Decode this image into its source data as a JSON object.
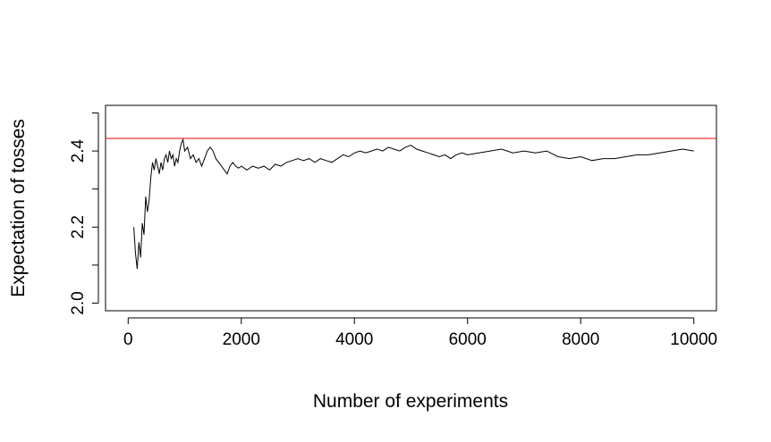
{
  "chart_data": {
    "type": "line",
    "title": "",
    "xlabel": "Number of experiments",
    "ylabel": "Expectation of tosses",
    "xlim": [
      -400,
      10400
    ],
    "ylim": [
      1.98,
      2.52
    ],
    "x_ticks": [
      0,
      2000,
      4000,
      6000,
      8000,
      10000
    ],
    "x_tick_labels": [
      "0",
      "2000",
      "4000",
      "6000",
      "8000",
      "10000"
    ],
    "y_ticks": [
      2.0,
      2.1,
      2.2,
      2.3,
      2.4,
      2.5
    ],
    "y_tick_labels": [
      "2.0",
      "",
      "2.2",
      "",
      "2.4",
      ""
    ],
    "grid": false,
    "reference_line": {
      "y": 2.433,
      "color": "#ff0000"
    },
    "series": [
      {
        "color": "#000000",
        "x": [
          100,
          130,
          160,
          190,
          220,
          250,
          280,
          310,
          340,
          370,
          400,
          430,
          460,
          490,
          520,
          550,
          580,
          610,
          640,
          670,
          700,
          730,
          760,
          790,
          820,
          850,
          880,
          910,
          940,
          970,
          1000,
          1050,
          1100,
          1150,
          1200,
          1250,
          1300,
          1350,
          1400,
          1450,
          1500,
          1550,
          1600,
          1650,
          1700,
          1750,
          1800,
          1850,
          1900,
          1950,
          2000,
          2100,
          2200,
          2300,
          2400,
          2500,
          2600,
          2700,
          2800,
          2900,
          3000,
          3100,
          3200,
          3300,
          3400,
          3500,
          3600,
          3700,
          3800,
          3900,
          4000,
          4100,
          4200,
          4300,
          4400,
          4500,
          4600,
          4700,
          4800,
          4900,
          5000,
          5100,
          5200,
          5300,
          5400,
          5500,
          5600,
          5700,
          5800,
          5900,
          6000,
          6200,
          6400,
          6600,
          6800,
          7000,
          7200,
          7400,
          7600,
          7800,
          8000,
          8200,
          8400,
          8600,
          8800,
          9000,
          9200,
          9400,
          9600,
          9800,
          10000
        ],
        "y": [
          2.2,
          2.13,
          2.09,
          2.16,
          2.12,
          2.21,
          2.18,
          2.28,
          2.24,
          2.27,
          2.33,
          2.37,
          2.35,
          2.38,
          2.36,
          2.34,
          2.37,
          2.35,
          2.38,
          2.39,
          2.37,
          2.4,
          2.38,
          2.39,
          2.36,
          2.38,
          2.37,
          2.4,
          2.42,
          2.43,
          2.4,
          2.41,
          2.38,
          2.39,
          2.37,
          2.38,
          2.36,
          2.38,
          2.4,
          2.41,
          2.4,
          2.38,
          2.37,
          2.36,
          2.35,
          2.34,
          2.36,
          2.37,
          2.36,
          2.355,
          2.36,
          2.35,
          2.36,
          2.355,
          2.36,
          2.35,
          2.365,
          2.36,
          2.37,
          2.375,
          2.38,
          2.375,
          2.38,
          2.37,
          2.38,
          2.375,
          2.37,
          2.38,
          2.39,
          2.385,
          2.395,
          2.4,
          2.395,
          2.4,
          2.405,
          2.4,
          2.41,
          2.405,
          2.4,
          2.41,
          2.415,
          2.405,
          2.4,
          2.395,
          2.39,
          2.385,
          2.39,
          2.38,
          2.39,
          2.395,
          2.39,
          2.395,
          2.4,
          2.405,
          2.395,
          2.4,
          2.395,
          2.4,
          2.385,
          2.38,
          2.385,
          2.375,
          2.38,
          2.38,
          2.385,
          2.39,
          2.39,
          2.395,
          2.4,
          2.405,
          2.4
        ]
      }
    ]
  }
}
